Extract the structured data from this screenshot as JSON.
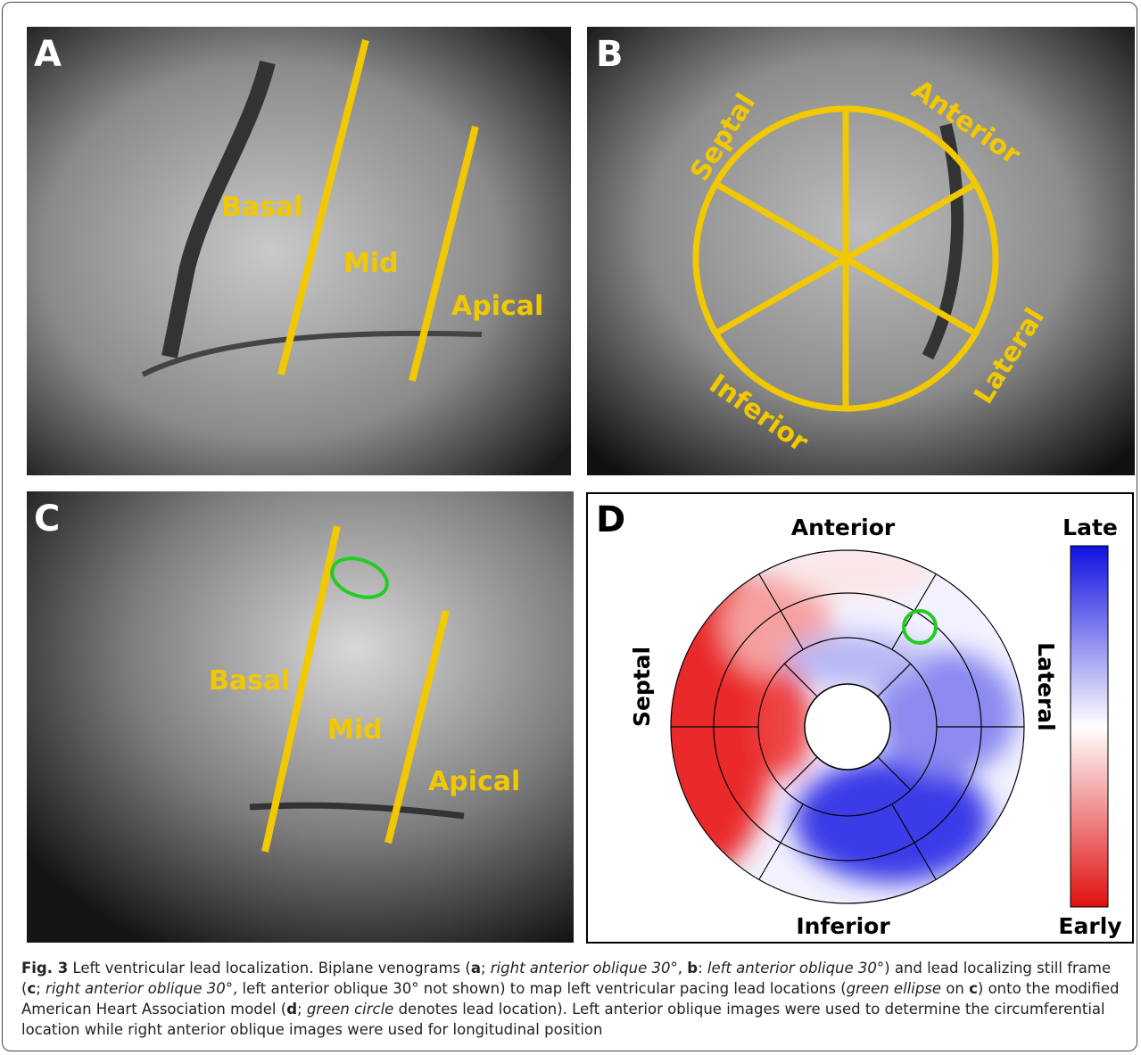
{
  "panels": [
    {
      "letter": "A",
      "labels": [
        "Basal",
        "Mid",
        "Apical"
      ]
    },
    {
      "letter": "B",
      "labels": [
        "Septal",
        "Anterior",
        "Lateral",
        "Inferior"
      ]
    },
    {
      "letter": "C",
      "labels": [
        "Basal",
        "Mid",
        "Apical"
      ]
    },
    {
      "letter": "D",
      "labels": [
        "Anterior",
        "Septal",
        "Lateral",
        "Inferior"
      ],
      "colorbar": [
        "Late",
        "Early"
      ]
    }
  ],
  "caption": [
    {
      "text": "Fig. 3",
      "style": "bold"
    },
    {
      "text": " Left ventricular lead localization. Biplane venograms (",
      "style": "normal"
    },
    {
      "text": "a",
      "style": "bold"
    },
    {
      "text": "; ",
      "style": "normal"
    },
    {
      "text": "right anterior oblique 30°",
      "style": "italic"
    },
    {
      "text": ", ",
      "style": "normal"
    },
    {
      "text": "b",
      "style": "bold"
    },
    {
      "text": ": ",
      "style": "normal"
    },
    {
      "text": "left anterior oblique 30°",
      "style": "italic"
    },
    {
      "text": ") and lead localizing still frame (",
      "style": "normal"
    },
    {
      "text": "c",
      "style": "bold"
    },
    {
      "text": "; ",
      "style": "normal"
    },
    {
      "text": "right anterior oblique 30°",
      "style": "italic"
    },
    {
      "text": ", left anterior oblique 30° not shown) to map left ventricular pacing lead locations (",
      "style": "normal"
    },
    {
      "text": "green ellipse",
      "style": "italic"
    },
    {
      "text": " on ",
      "style": "normal"
    },
    {
      "text": "c",
      "style": "bold"
    },
    {
      "text": ") onto the modified American Heart Association model (",
      "style": "normal"
    },
    {
      "text": "d",
      "style": "bold"
    },
    {
      "text": "; ",
      "style": "normal"
    },
    {
      "text": "green circle",
      "style": "italic"
    },
    {
      "text": " denotes lead location). Left anterior oblique images were used to determine the circumferential location while right anterior oblique images were used for longitudinal position",
      "style": "normal"
    }
  ]
}
